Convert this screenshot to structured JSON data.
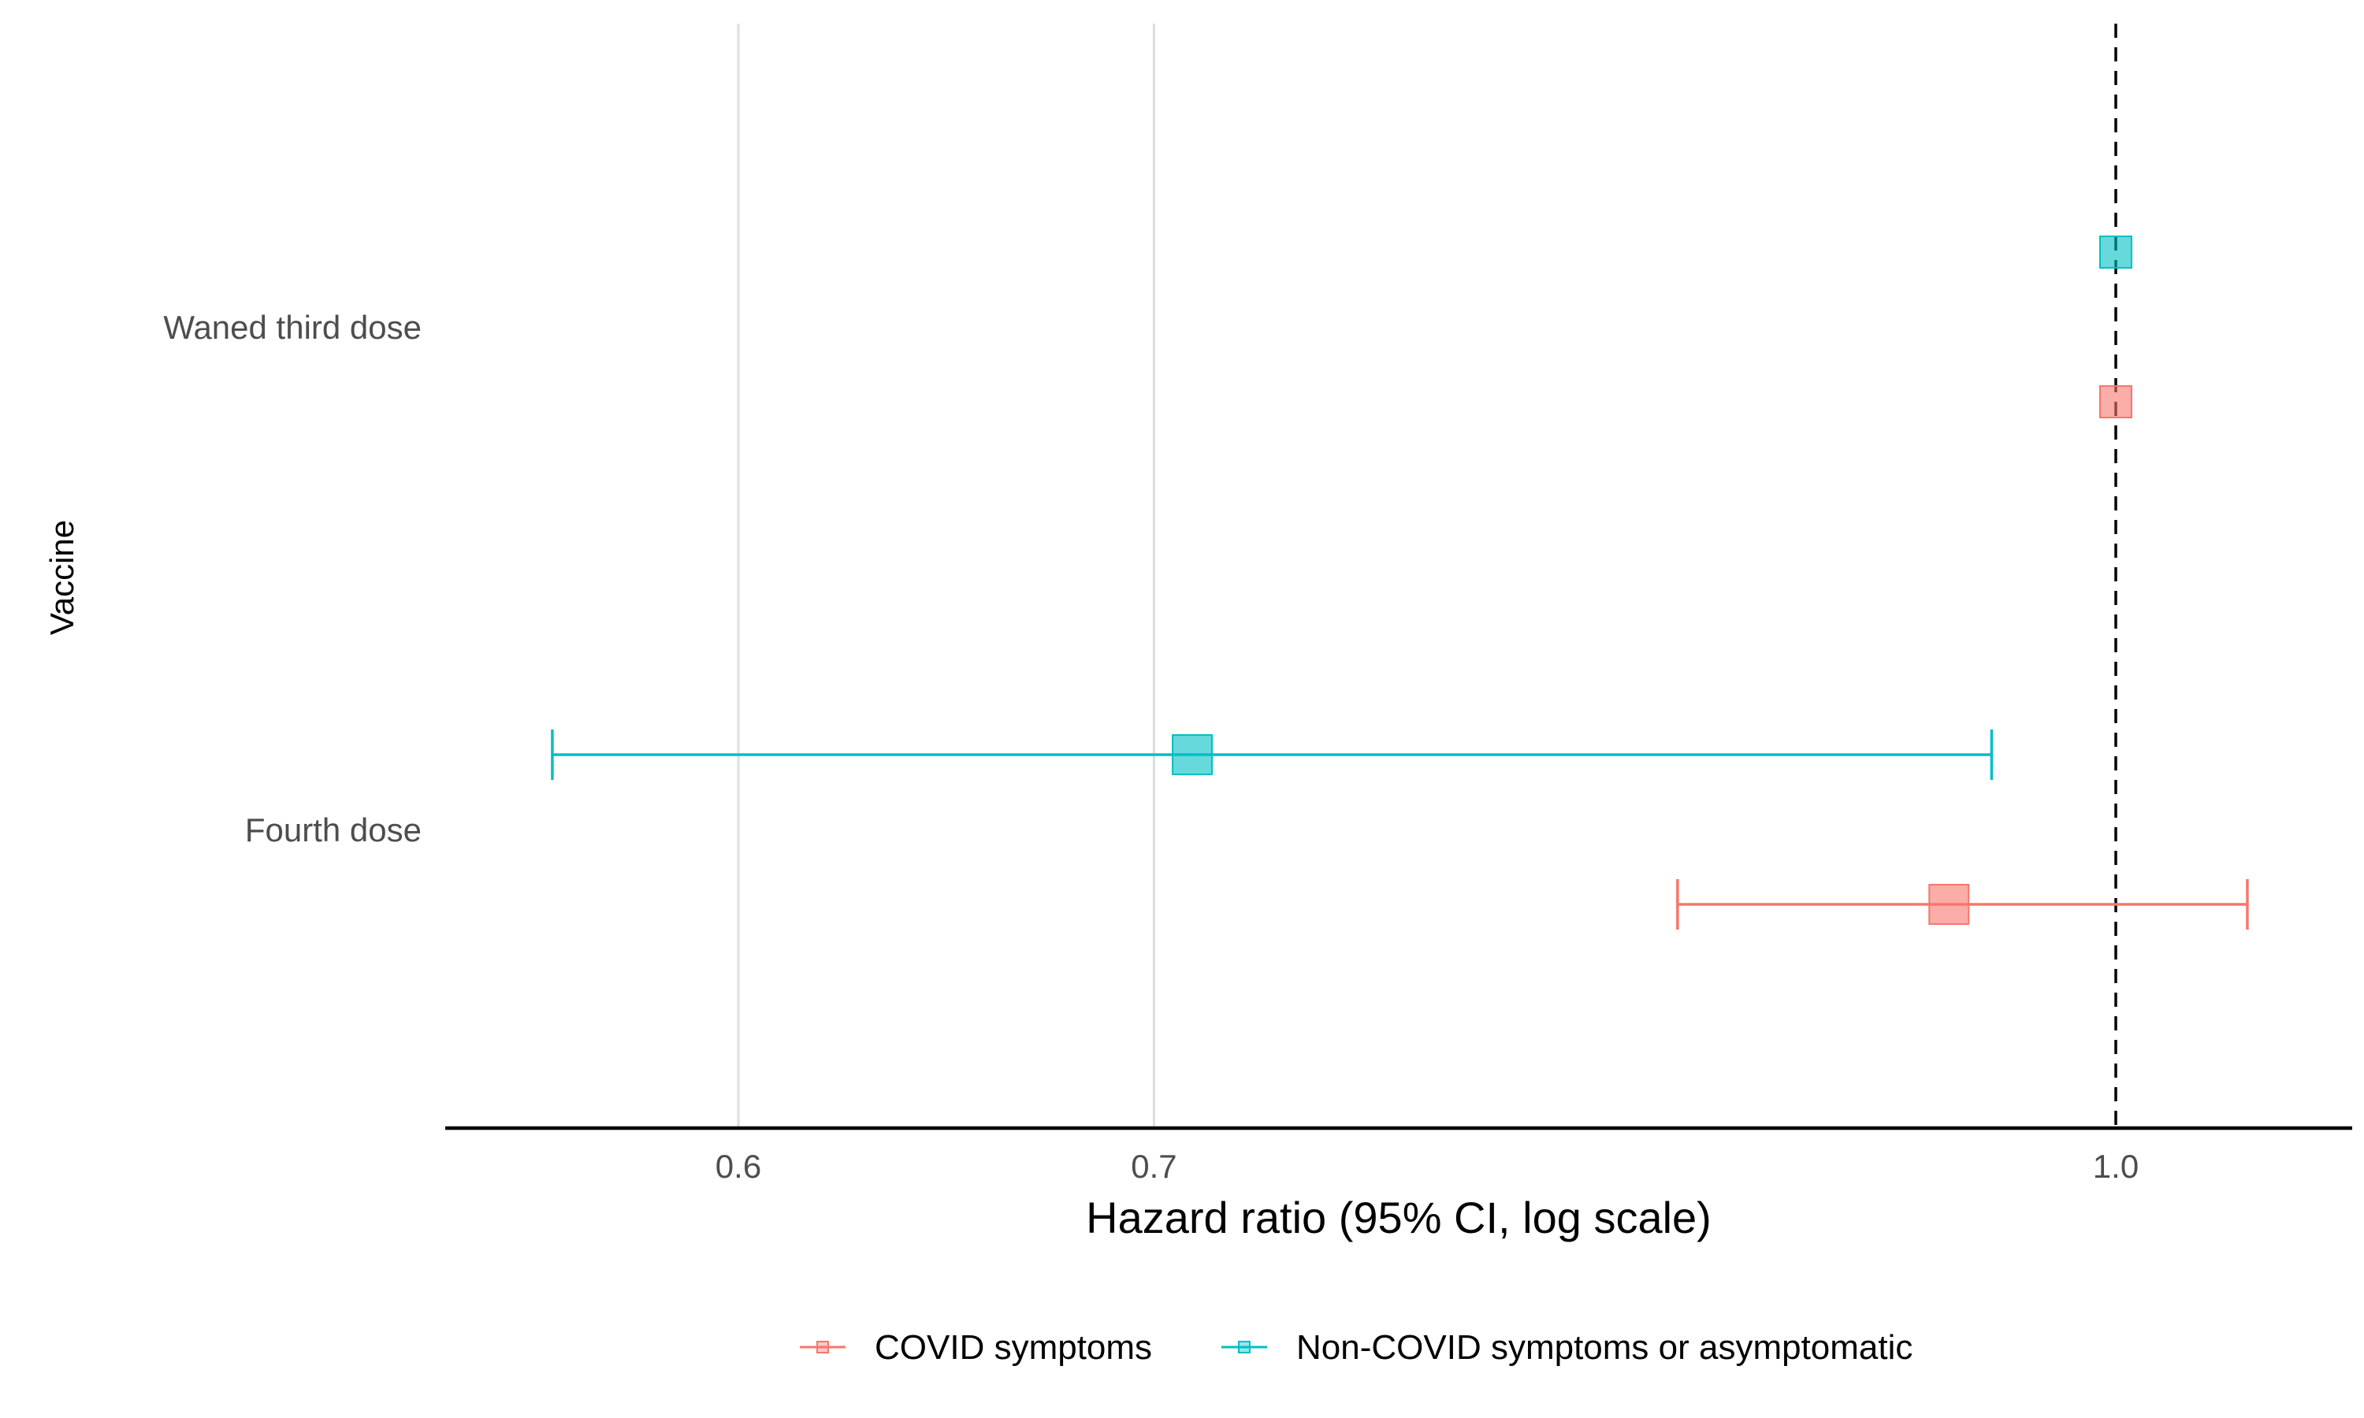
{
  "chart_data": {
    "type": "forest",
    "xlabel": "Hazard ratio (95% CI, log scale)",
    "ylabel": "Vaccine",
    "x_scale": "log",
    "xlim": [
      0.54,
      1.1
    ],
    "x_ticks": [
      0.6,
      0.7,
      1.0
    ],
    "x_tick_labels": [
      "0.6",
      "0.7",
      "1.0"
    ],
    "reference_line": 1.0,
    "categories": [
      "Waned third dose",
      "Fourth dose"
    ],
    "series": [
      {
        "name": "COVID symptoms",
        "color": "#F8766D",
        "points": [
          {
            "category": "Waned third dose",
            "hr": 1.0,
            "lower": null,
            "upper": null
          },
          {
            "category": "Fourth dose",
            "hr": 0.94,
            "lower": 0.85,
            "upper": 1.05
          }
        ]
      },
      {
        "name": "Non-COVID symptoms or asymptomatic",
        "color": "#00BFC4",
        "points": [
          {
            "category": "Waned third dose",
            "hr": 1.0,
            "lower": null,
            "upper": null
          },
          {
            "category": "Fourth dose",
            "hr": 0.71,
            "lower": 0.56,
            "upper": 0.955
          }
        ]
      }
    ],
    "grid": "vertical-major",
    "legend_position": "bottom"
  }
}
